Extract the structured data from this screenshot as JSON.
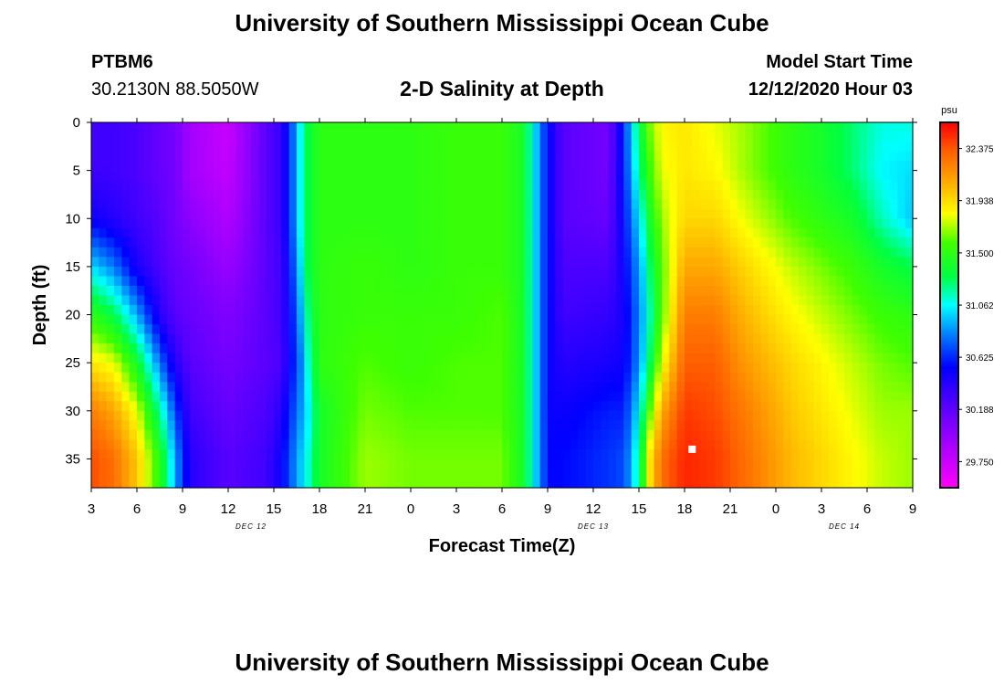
{
  "header": {
    "title": "University of Southern Mississippi Ocean Cube",
    "station": "PTBM6",
    "coords": "30.2130N 88.5050W",
    "plot_title": "2-D Salinity at Depth",
    "model_start_label": "Model Start Time",
    "model_start_value": "12/12/2020 Hour 03"
  },
  "footer": {
    "title": "University of Southern Mississippi Ocean Cube"
  },
  "colorbar": {
    "unit": "psu",
    "ticks": [
      "32.375",
      "31.938",
      "31.500",
      "31.062",
      "30.625",
      "30.188",
      "29.750"
    ],
    "min": 29.531,
    "max": 32.594
  },
  "chart_data": {
    "type": "heatmap",
    "title": "2-D Salinity at Depth",
    "xlabel": "Forecast Time(Z)",
    "ylabel": "Depth (ft)",
    "x_tick_labels": [
      "3",
      "6",
      "9",
      "12",
      "15",
      "18",
      "21",
      "0",
      "3",
      "6",
      "9",
      "12",
      "15",
      "18",
      "21",
      "0",
      "3",
      "6",
      "9"
    ],
    "x_range_hours": [
      0,
      54
    ],
    "y_tick_labels": [
      "0",
      "5",
      "10",
      "15",
      "20",
      "25",
      "30",
      "35"
    ],
    "ylim": [
      0,
      38
    ],
    "date_labels": [
      {
        "text": "DEC 12",
        "hour": 10.5
      },
      {
        "text": "DEC 13",
        "hour": 33
      },
      {
        "text": "DEC 14",
        "hour": 49.5
      }
    ],
    "value_unit": "psu",
    "vmin": 29.531,
    "vmax": 32.594,
    "profiles": [
      {
        "hour": 0,
        "values": [
          30.3,
          30.3,
          30.5,
          31.0,
          31.5,
          31.9,
          32.25,
          32.4
        ]
      },
      {
        "hour": 1.5,
        "values": [
          30.3,
          30.3,
          30.4,
          30.8,
          31.3,
          31.8,
          32.1,
          32.3
        ]
      },
      {
        "hour": 3,
        "values": [
          30.25,
          30.25,
          30.3,
          30.45,
          30.9,
          31.4,
          31.8,
          32.0
        ]
      },
      {
        "hour": 4.5,
        "values": [
          30.15,
          30.15,
          30.2,
          30.25,
          30.4,
          30.8,
          31.2,
          31.5
        ]
      },
      {
        "hour": 5.5,
        "values": [
          30.1,
          30.1,
          30.1,
          30.15,
          30.2,
          30.4,
          30.7,
          30.9
        ]
      },
      {
        "hour": 6.5,
        "values": [
          29.9,
          29.9,
          30.0,
          30.1,
          30.15,
          30.2,
          30.3,
          30.4
        ]
      },
      {
        "hour": 9,
        "values": [
          29.75,
          29.78,
          29.85,
          29.95,
          30.05,
          30.1,
          30.15,
          30.2
        ]
      },
      {
        "hour": 11.5,
        "values": [
          30.2,
          30.2,
          30.2,
          30.2,
          30.2,
          30.2,
          30.25,
          30.3
        ]
      },
      {
        "hour": 12.5,
        "values": [
          30.35,
          30.35,
          30.35,
          30.3,
          30.3,
          30.25,
          30.4,
          30.5
        ]
      },
      {
        "hour": 13,
        "values": [
          30.6,
          30.6,
          30.6,
          30.55,
          30.5,
          30.5,
          30.6,
          30.7
        ]
      },
      {
        "hour": 13.6,
        "values": [
          31.0,
          31.0,
          31.0,
          30.9,
          30.8,
          30.7,
          30.8,
          30.9
        ]
      },
      {
        "hour": 14.2,
        "values": [
          31.3,
          31.3,
          31.3,
          31.3,
          31.2,
          31.1,
          31.0,
          31.1
        ]
      },
      {
        "hour": 15,
        "values": [
          31.5,
          31.5,
          31.5,
          31.5,
          31.5,
          31.5,
          31.4,
          31.4
        ]
      },
      {
        "hour": 18,
        "values": [
          31.5,
          31.5,
          31.5,
          31.55,
          31.55,
          31.6,
          31.65,
          31.7
        ]
      },
      {
        "hour": 21,
        "values": [
          31.5,
          31.5,
          31.5,
          31.5,
          31.55,
          31.55,
          31.6,
          31.65
        ]
      },
      {
        "hour": 24,
        "values": [
          31.55,
          31.55,
          31.55,
          31.55,
          31.55,
          31.6,
          31.6,
          31.65
        ]
      },
      {
        "hour": 27,
        "values": [
          31.55,
          31.55,
          31.55,
          31.55,
          31.6,
          31.6,
          31.6,
          31.65
        ]
      },
      {
        "hour": 28.4,
        "values": [
          31.4,
          31.4,
          31.4,
          31.4,
          31.4,
          31.4,
          31.4,
          31.4
        ]
      },
      {
        "hour": 29,
        "values": [
          31.1,
          31.1,
          31.1,
          31.1,
          31.1,
          31.1,
          31.1,
          31.1
        ]
      },
      {
        "hour": 29.6,
        "values": [
          30.75,
          30.75,
          30.75,
          30.75,
          30.75,
          30.75,
          30.75,
          30.75
        ]
      },
      {
        "hour": 30.2,
        "values": [
          30.5,
          30.5,
          30.5,
          30.5,
          30.5,
          30.5,
          30.5,
          30.55
        ]
      },
      {
        "hour": 31,
        "values": [
          30.2,
          30.2,
          30.2,
          30.25,
          30.3,
          30.4,
          30.5,
          30.55
        ]
      },
      {
        "hour": 34,
        "values": [
          30.1,
          30.1,
          30.15,
          30.25,
          30.35,
          30.45,
          30.6,
          30.65
        ]
      },
      {
        "hour": 35,
        "values": [
          30.6,
          30.6,
          30.55,
          30.5,
          30.45,
          30.5,
          30.6,
          30.7
        ]
      },
      {
        "hour": 35.5,
        "values": [
          31.0,
          30.9,
          30.8,
          30.7,
          30.65,
          30.65,
          30.8,
          30.9
        ]
      },
      {
        "hour": 36.1,
        "values": [
          31.35,
          31.25,
          31.05,
          30.9,
          30.85,
          30.9,
          31.1,
          31.3
        ]
      },
      {
        "hour": 36.7,
        "values": [
          31.65,
          31.55,
          31.4,
          31.25,
          31.15,
          31.25,
          31.6,
          31.9
        ]
      },
      {
        "hour": 37.5,
        "values": [
          31.85,
          31.8,
          31.7,
          31.6,
          31.6,
          31.8,
          32.1,
          32.3
        ]
      },
      {
        "hour": 39,
        "values": [
          31.9,
          31.9,
          31.95,
          32.1,
          32.25,
          32.35,
          32.45,
          32.5
        ]
      },
      {
        "hour": 41,
        "values": [
          31.8,
          31.85,
          31.95,
          32.1,
          32.25,
          32.35,
          32.4,
          32.45
        ]
      },
      {
        "hour": 43,
        "values": [
          31.7,
          31.7,
          31.8,
          31.95,
          32.05,
          32.15,
          32.25,
          32.3
        ]
      },
      {
        "hour": 46,
        "values": [
          31.5,
          31.5,
          31.6,
          31.75,
          31.85,
          31.95,
          32.0,
          32.05
        ]
      },
      {
        "hour": 48,
        "values": [
          31.4,
          31.4,
          31.5,
          31.65,
          31.75,
          31.85,
          31.9,
          31.95
        ]
      },
      {
        "hour": 50,
        "values": [
          31.25,
          31.25,
          31.4,
          31.55,
          31.65,
          31.75,
          31.8,
          31.85
        ]
      },
      {
        "hour": 52,
        "values": [
          31.1,
          31.05,
          31.15,
          31.4,
          31.55,
          31.65,
          31.7,
          31.75
        ]
      },
      {
        "hour": 54,
        "values": [
          31.1,
          31.0,
          30.95,
          31.3,
          31.5,
          31.6,
          31.7,
          31.7
        ]
      }
    ],
    "profile_depths_ft": [
      0,
      5,
      10,
      15,
      20,
      25,
      30,
      35
    ],
    "marker": {
      "hour": 39.5,
      "depth_ft": 34
    }
  }
}
